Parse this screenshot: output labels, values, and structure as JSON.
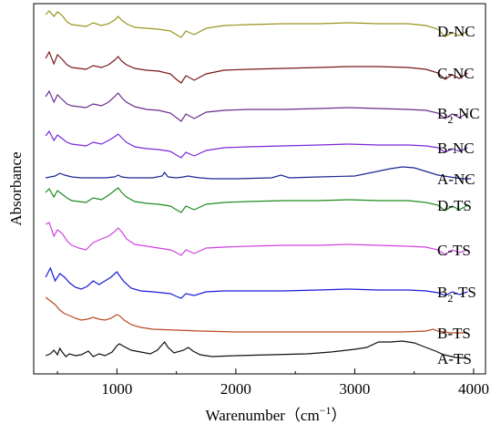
{
  "chart_data": {
    "type": "line",
    "title": "",
    "xlabel": "Warenumber（cm",
    "xlabel_sup": "−1",
    "xlabel_close": "）",
    "ylabel": "Absorbance",
    "xlim": [
      300,
      4100
    ],
    "xticks": [
      1000,
      2000,
      3000,
      4000
    ],
    "grid": false,
    "legend": "inline labels at right end of each trace",
    "series": [
      {
        "name": "D-NC",
        "label_main": "D-NC",
        "label_sub": "",
        "label_tail": "",
        "color": "#9a9420",
        "x": [
          400,
          430,
          470,
          500,
          540,
          580,
          620,
          680,
          740,
          800,
          870,
          930,
          980,
          1010,
          1040,
          1080,
          1150,
          1250,
          1350,
          1450,
          1500,
          1540,
          1580,
          1650,
          1750,
          1900,
          2100,
          2400,
          2700,
          2950,
          3200,
          3450,
          3600,
          3700,
          3760,
          3820,
          3880,
          3950
        ],
        "y": [
          12,
          8,
          14,
          9,
          13,
          20,
          23,
          24,
          25,
          21,
          24,
          22,
          18,
          14,
          18,
          22,
          26,
          27,
          28,
          30,
          34,
          37,
          30,
          34,
          27,
          24,
          23,
          22,
          22,
          21,
          22,
          22,
          24,
          28,
          36,
          32,
          35,
          30
        ]
      },
      {
        "name": "C-NC",
        "label_main": "C-NC",
        "label_sub": "",
        "label_tail": "",
        "color": "#7a1818",
        "x": [
          400,
          430,
          470,
          500,
          540,
          580,
          620,
          680,
          740,
          800,
          870,
          930,
          980,
          1010,
          1040,
          1080,
          1150,
          1250,
          1350,
          1450,
          1500,
          1540,
          1580,
          1650,
          1750,
          1900,
          2100,
          2400,
          2700,
          2950,
          3200,
          3450,
          3600,
          3700,
          3760,
          3820,
          3880,
          3950
        ],
        "y": [
          60,
          53,
          66,
          56,
          61,
          67,
          70,
          71,
          72,
          68,
          70,
          67,
          62,
          58,
          63,
          67,
          71,
          73,
          74,
          77,
          83,
          87,
          79,
          84,
          77,
          73,
          72,
          71,
          70,
          69,
          69,
          70,
          72,
          76,
          83,
          78,
          82,
          76
        ]
      },
      {
        "name": "B2-NC",
        "label_main": "B",
        "label_sub": "2",
        "label_tail": "-NC",
        "color": "#6a2c8c",
        "x": [
          400,
          430,
          470,
          500,
          540,
          580,
          620,
          680,
          740,
          800,
          870,
          930,
          980,
          1010,
          1040,
          1080,
          1150,
          1250,
          1350,
          1450,
          1500,
          1540,
          1580,
          1650,
          1750,
          1900,
          2100,
          2400,
          2700,
          2950,
          3200,
          3450,
          3600,
          3700,
          3760,
          3820,
          3880,
          3950
        ],
        "y": [
          102,
          96,
          108,
          100,
          105,
          110,
          112,
          113,
          114,
          110,
          112,
          108,
          102,
          98,
          103,
          108,
          113,
          116,
          117,
          120,
          125,
          129,
          121,
          126,
          119,
          117,
          116,
          116,
          115,
          114,
          115,
          116,
          117,
          120,
          126,
          121,
          125,
          120
        ]
      },
      {
        "name": "B-NC",
        "label_main": "B-NC",
        "label_sub": "",
        "label_tail": "",
        "color": "#7a28d8",
        "x": [
          400,
          430,
          470,
          500,
          540,
          580,
          620,
          680,
          740,
          800,
          870,
          930,
          980,
          1010,
          1040,
          1080,
          1150,
          1250,
          1350,
          1450,
          1500,
          1540,
          1580,
          1650,
          1750,
          1900,
          2100,
          2400,
          2700,
          2950,
          3200,
          3450,
          3600,
          3700,
          3760,
          3820,
          3880,
          3950
        ],
        "y": [
          145,
          140,
          150,
          144,
          148,
          152,
          154,
          155,
          156,
          152,
          154,
          150,
          146,
          143,
          147,
          152,
          157,
          159,
          160,
          162,
          166,
          169,
          163,
          167,
          161,
          158,
          157,
          156,
          155,
          154,
          155,
          155,
          156,
          158,
          163,
          159,
          162,
          158
        ]
      },
      {
        "name": "A-NC",
        "label_main": "A-NC",
        "label_sub": "",
        "label_tail": "",
        "color": "#1a2890",
        "x": [
          400,
          440,
          480,
          520,
          560,
          620,
          700,
          800,
          900,
          980,
          1010,
          1040,
          1100,
          1200,
          1300,
          1380,
          1400,
          1430,
          1500,
          1560,
          1600,
          1640,
          1700,
          1800,
          2000,
          2300,
          2380,
          2450,
          2700,
          3000,
          3150,
          3300,
          3400,
          3500,
          3600,
          3700,
          3800,
          3900,
          3980
        ],
        "y": [
          191,
          190,
          189,
          186,
          188,
          190,
          191,
          191,
          191,
          190,
          188,
          190,
          191,
          191,
          191,
          189,
          185,
          190,
          191,
          190,
          189,
          190,
          191,
          192,
          192,
          191,
          188,
          191,
          190,
          189,
          185,
          181,
          179,
          180,
          184,
          188,
          190,
          192,
          192
        ]
      },
      {
        "name": "D-TS",
        "label_main": "D-TS",
        "label_sub": "",
        "label_tail": "",
        "color": "#1e8a1e",
        "x": [
          400,
          430,
          470,
          500,
          540,
          580,
          620,
          680,
          740,
          800,
          870,
          930,
          980,
          1010,
          1040,
          1080,
          1150,
          1250,
          1350,
          1450,
          1500,
          1540,
          1580,
          1650,
          1750,
          1900,
          2100,
          2400,
          2700,
          2950,
          3200,
          3450,
          3600,
          3700,
          3760,
          3820,
          3880,
          3950
        ],
        "y": [
          207,
          203,
          212,
          205,
          209,
          213,
          216,
          217,
          218,
          213,
          215,
          210,
          205,
          202,
          207,
          212,
          217,
          219,
          220,
          222,
          226,
          229,
          222,
          226,
          220,
          218,
          217,
          216,
          216,
          215,
          216,
          216,
          218,
          221,
          227,
          222,
          226,
          221
        ]
      },
      {
        "name": "C-TS",
        "label_main": "C-TS",
        "label_sub": "",
        "label_tail": "",
        "color": "#cc44dd",
        "x": [
          400,
          430,
          470,
          500,
          540,
          580,
          620,
          680,
          740,
          800,
          870,
          930,
          980,
          1010,
          1040,
          1080,
          1150,
          1250,
          1350,
          1450,
          1500,
          1540,
          1580,
          1650,
          1750,
          1900,
          2100,
          2400,
          2700,
          2950,
          3200,
          3450,
          3600,
          3700,
          3760,
          3820,
          3880,
          3950
        ],
        "y": [
          242,
          240,
          255,
          248,
          252,
          260,
          265,
          268,
          270,
          262,
          258,
          255,
          250,
          246,
          250,
          258,
          264,
          266,
          268,
          270,
          273,
          276,
          270,
          274,
          268,
          267,
          266,
          265,
          265,
          264,
          265,
          266,
          267,
          270,
          275,
          270,
          273,
          270
        ]
      },
      {
        "name": "B2-TS",
        "label_main": "B",
        "label_sub": "2",
        "label_tail": "-TS",
        "color": "#1a1ad8",
        "x": [
          400,
          440,
          480,
          520,
          560,
          600,
          650,
          700,
          750,
          800,
          850,
          900,
          950,
          1000,
          1020,
          1060,
          1120,
          1200,
          1300,
          1450,
          1500,
          1540,
          1580,
          1650,
          1750,
          1900,
          2100,
          2400,
          2700,
          2950,
          3200,
          3450,
          3600,
          3700,
          3760,
          3820,
          3880,
          3950
        ],
        "y": [
          300,
          290,
          304,
          296,
          300,
          306,
          311,
          313,
          310,
          304,
          308,
          304,
          300,
          294,
          298,
          305,
          312,
          315,
          316,
          318,
          321,
          323,
          318,
          320,
          316,
          315,
          315,
          315,
          314,
          313,
          314,
          314,
          315,
          317,
          320,
          316,
          319,
          316
        ]
      },
      {
        "name": "B-TS",
        "label_main": "B-TS",
        "label_sub": "",
        "label_tail": "",
        "color": "#b84a20",
        "x": [
          400,
          440,
          480,
          520,
          560,
          600,
          650,
          700,
          750,
          800,
          850,
          900,
          950,
          1000,
          1020,
          1060,
          1120,
          1200,
          1300,
          1500,
          1700,
          2000,
          2500,
          3000,
          3400,
          3600,
          3660,
          3700,
          3800,
          3950
        ],
        "y": [
          322,
          326,
          330,
          336,
          340,
          342,
          345,
          347,
          346,
          344,
          346,
          347,
          345,
          341,
          342,
          347,
          352,
          355,
          357,
          358,
          359,
          360,
          360,
          360,
          360,
          359,
          357,
          359,
          361,
          361
        ]
      },
      {
        "name": "A-TS",
        "label_main": "A-TS",
        "label_sub": "",
        "label_tail": "",
        "color": "#111111",
        "x": [
          400,
          440,
          470,
          500,
          520,
          540,
          570,
          600,
          650,
          700,
          760,
          800,
          850,
          900,
          960,
          1000,
          1020,
          1060,
          1120,
          1200,
          1280,
          1340,
          1380,
          1400,
          1430,
          1480,
          1560,
          1600,
          1640,
          1700,
          1800,
          2000,
          2300,
          2600,
          2800,
          3000,
          3100,
          3200,
          3300,
          3400,
          3500,
          3600,
          3680,
          3750,
          3850,
          3950
        ],
        "y": [
          386,
          384,
          380,
          385,
          378,
          382,
          387,
          384,
          386,
          385,
          381,
          387,
          384,
          386,
          382,
          375,
          373,
          376,
          380,
          382,
          384,
          380,
          374,
          371,
          377,
          383,
          380,
          377,
          381,
          385,
          387,
          386,
          385,
          384,
          382,
          379,
          377,
          371,
          371,
          370,
          372,
          377,
          381,
          385,
          388,
          389
        ]
      }
    ]
  }
}
